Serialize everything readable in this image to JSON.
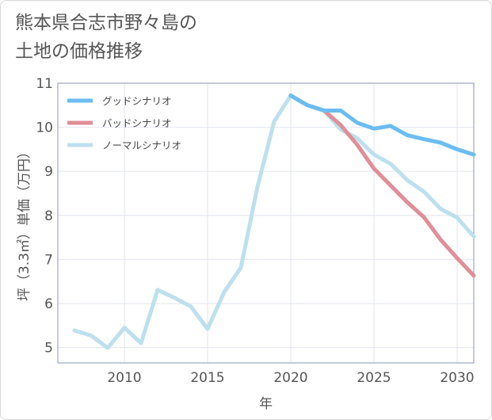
{
  "title_lines": [
    "熊本県合志市野々島の",
    "土地の価格推移"
  ],
  "chart_data": {
    "type": "line",
    "title": "熊本県合志市野々島の土地の価格推移",
    "xlabel": "年",
    "ylabel": "坪（3.3㎡）単価（万円）",
    "xlim": [
      2006,
      2031
    ],
    "ylim": [
      4.65,
      11
    ],
    "xticks": [
      2010,
      2015,
      2020,
      2025,
      2030
    ],
    "yticks": [
      5,
      6,
      7,
      8,
      9,
      10,
      11
    ],
    "grid": true,
    "legend_position": "top-left",
    "series": [
      {
        "name": "グッドシナリオ",
        "color": "#6bbdf0",
        "x": [
          2020,
          2021,
          2022,
          2023,
          2024,
          2025,
          2026,
          2027,
          2028,
          2029,
          2030,
          2031
        ],
        "values": [
          10.72,
          10.5,
          10.38,
          10.38,
          10.1,
          9.97,
          10.03,
          9.82,
          9.73,
          9.65,
          9.5,
          9.38
        ]
      },
      {
        "name": "バッドシナリオ",
        "color": "#e08e98",
        "x": [
          2020,
          2021,
          2022,
          2023,
          2024,
          2025,
          2026,
          2027,
          2028,
          2029,
          2030,
          2031
        ],
        "values": [
          10.72,
          10.5,
          10.38,
          10.05,
          9.6,
          9.06,
          8.68,
          8.3,
          7.96,
          7.45,
          7.03,
          6.63
        ]
      },
      {
        "name": "ノーマルシナリオ",
        "color": "#bde0ee",
        "x": [
          2007,
          2008,
          2009,
          2010,
          2011,
          2012,
          2013,
          2014,
          2015,
          2016,
          2017,
          2018,
          2019,
          2020,
          2021,
          2022,
          2023,
          2024,
          2025,
          2026,
          2027,
          2028,
          2029,
          2030,
          2031
        ],
        "values": [
          5.39,
          5.27,
          4.99,
          5.45,
          5.1,
          6.31,
          6.13,
          5.93,
          5.42,
          6.26,
          6.81,
          8.65,
          10.13,
          10.72,
          10.5,
          10.38,
          9.95,
          9.75,
          9.38,
          9.17,
          8.8,
          8.54,
          8.15,
          7.95,
          7.52
        ]
      }
    ]
  }
}
